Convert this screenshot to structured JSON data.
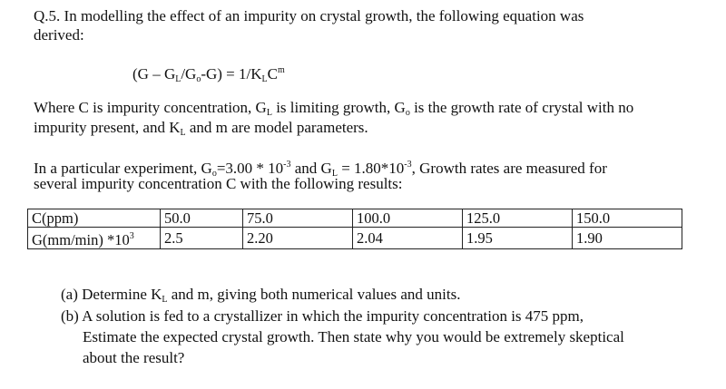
{
  "question": {
    "intro_line1": "Q.5. In modelling the effect of an impurity on crystal growth, the following equation was",
    "intro_line2": "derived:",
    "equation": {
      "p1": "(G – G",
      "sub1": "L",
      "p2": "/G",
      "sub2": "o",
      "p3": "-G) = 1/K",
      "sub3": "L",
      "p4": "C",
      "sup1": "m"
    },
    "where": {
      "a": "Where C is impurity concentration, G",
      "a_sub": "L",
      "b": "is limiting growth, G",
      "b_sub": "o",
      "c": " is the growth rate of crystal with no",
      "line2_a": "impurity present, and K",
      "line2_sub": "L",
      "line2_b": " and m are model parameters."
    },
    "experiment": {
      "a": "In a particular experiment, G",
      "a_sub": "o",
      "b": "=3.00 * 10",
      "b_sup": "-3",
      "c": " and G",
      "c_sub": "L",
      "d": " = 1.80*10",
      "d_sup": "-3",
      "e": ", Growth rates are measured for",
      "line2": "several impurity concentration C with the following results:"
    },
    "table": {
      "row1_label": "C(ppm)",
      "row2_label_a": "G(mm/min) *10",
      "row2_label_sup": "3",
      "concentrations": [
        "50.0",
        "75.0",
        "100.0",
        "125.0",
        "150.0"
      ],
      "growth_rates": [
        "2.5",
        "2.20",
        "2.04",
        "1.95",
        "1.90"
      ]
    },
    "parts": {
      "a_prefix": "(a) Determine K",
      "a_sub": "L",
      "a_rest": " and m, giving both numerical values and units.",
      "b_line1": "(b) A solution is fed to a crystallizer in which the impurity concentration is 475 ppm,",
      "b_line2": "Estimate the expected crystal growth. Then state why you would be extremely skeptical",
      "b_line3": "about the result?"
    }
  }
}
